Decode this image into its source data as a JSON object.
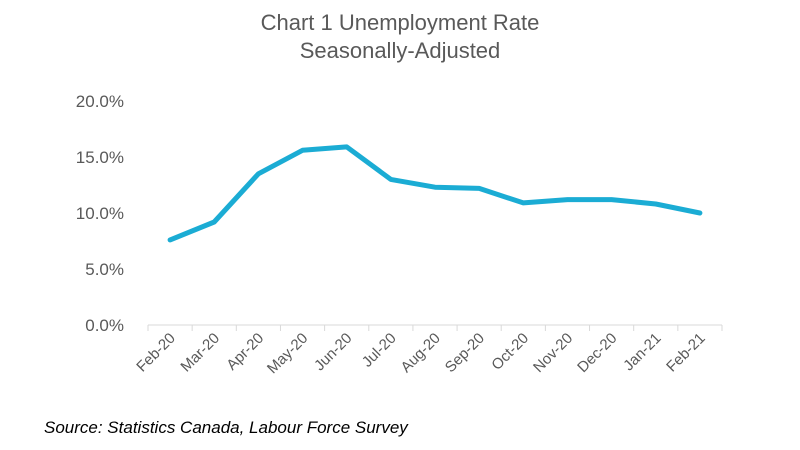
{
  "chart_data": {
    "type": "line",
    "title": "Chart 1 Unemployment Rate",
    "subtitle": "Seasonally-Adjusted",
    "categories": [
      "Feb-20",
      "Mar-20",
      "Apr-20",
      "May-20",
      "Jun-20",
      "Jul-20",
      "Aug-20",
      "Sep-20",
      "Oct-20",
      "Nov-20",
      "Dec-20",
      "Jan-21",
      "Feb-21"
    ],
    "series": [
      {
        "name": "Unemployment Rate",
        "values": [
          7.6,
          9.2,
          13.5,
          15.6,
          15.9,
          13.0,
          12.3,
          12.2,
          10.9,
          11.2,
          11.2,
          10.8,
          10.0
        ],
        "color": "#1BACD4"
      }
    ],
    "yticks": [
      "0.0%",
      "5.0%",
      "10.0%",
      "15.0%",
      "20.0%"
    ],
    "ylim": [
      0,
      20
    ],
    "xlabel": "",
    "ylabel": "",
    "grid": false,
    "axis_color": "#D9D9D9"
  },
  "source": "Source: Statistics Canada, Labour Force Survey"
}
